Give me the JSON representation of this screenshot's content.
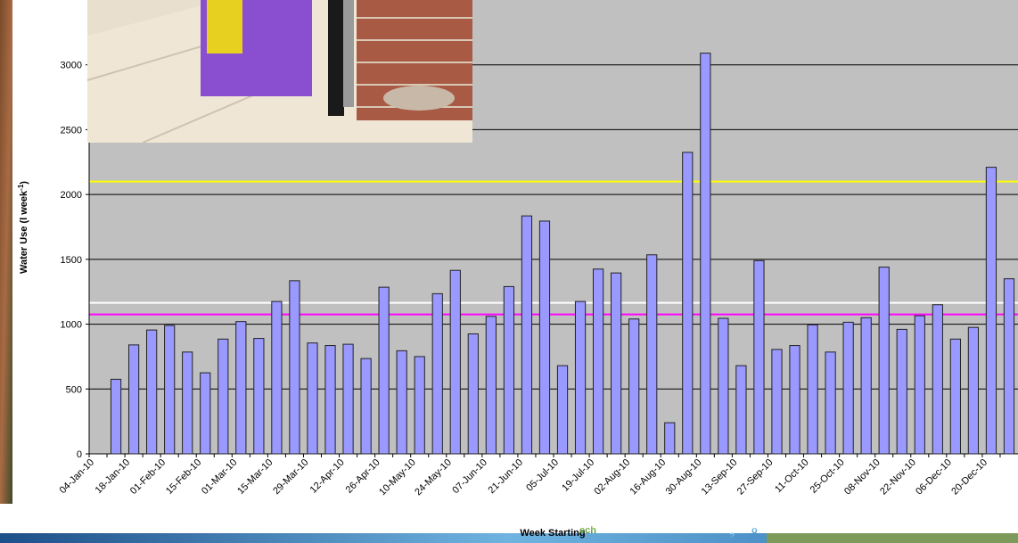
{
  "chart_data": {
    "type": "bar",
    "y_label": {
      "main": "Water Use (l week",
      "sup": "-1",
      "end": ")"
    },
    "x_label": "Week Starting",
    "categories": [
      "04-Jan-10",
      null,
      "18-Jan-10",
      null,
      "01-Feb-10",
      null,
      "15-Feb-10",
      null,
      "01-Mar-10",
      null,
      "15-Mar-10",
      null,
      "29-Mar-10",
      null,
      "12-Apr-10",
      null,
      "26-Apr-10",
      null,
      "10-May-10",
      null,
      "24-May-10",
      null,
      "07-Jun-10",
      null,
      "21-Jun-10",
      null,
      "05-Jul-10",
      null,
      "19-Jul-10",
      null,
      "02-Aug-10",
      null,
      "16-Aug-10",
      null,
      "30-Aug-10",
      null,
      "13-Sep-10",
      null,
      "27-Sep-10",
      null,
      "11-Oct-10",
      null,
      "25-Oct-10",
      null,
      "08-Nov-10",
      null,
      "22-Nov-10",
      null,
      "06-Dec-10",
      null,
      "20-Dec-10",
      null
    ],
    "values": [
      null,
      575,
      840,
      955,
      990,
      785,
      625,
      885,
      1020,
      890,
      1175,
      1335,
      855,
      835,
      845,
      735,
      1285,
      795,
      750,
      1235,
      1415,
      925,
      1060,
      1290,
      1835,
      1795,
      680,
      1175,
      1425,
      1395,
      1040,
      1535,
      240,
      2325,
      3090,
      1045,
      680,
      1490,
      805,
      835,
      995,
      785,
      1015,
      1050,
      1440,
      960,
      1065,
      1150,
      885,
      975,
      2210,
      1350
    ],
    "color": "#9999ff",
    "ylim": [
      0,
      3500
    ],
    "yticks": [
      0,
      500,
      1000,
      1500,
      2000,
      2500,
      3000
    ],
    "grid": true,
    "reference_lines": [
      {
        "value": 2100,
        "color": "#ffff00"
      },
      {
        "value": 1165,
        "color": "#ffffff"
      },
      {
        "value": 1075,
        "color": "#ff00ff"
      }
    ]
  },
  "logo": {
    "main": "ech",
    "sub": "2",
    "end": "o"
  }
}
